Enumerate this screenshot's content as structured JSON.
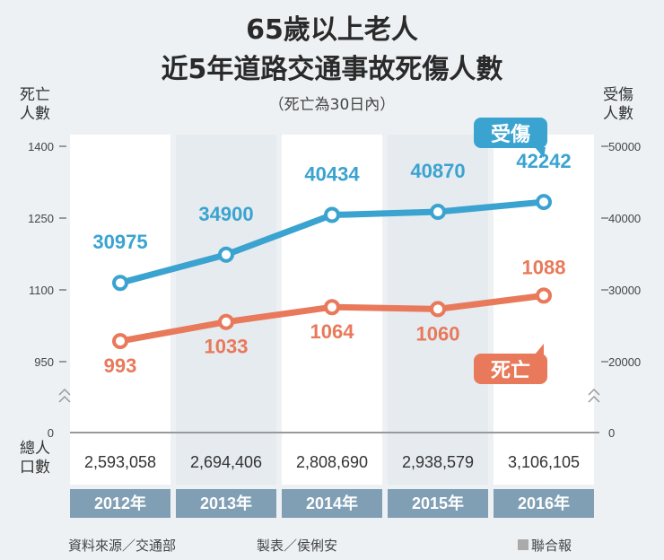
{
  "chart_data": {
    "type": "line",
    "title": "65歲以上老人",
    "subtitle": "近5年道路交通事故死傷人數",
    "note": "（死亡為30日內）",
    "left_axis_label": "死亡人數",
    "right_axis_label": "受傷人數",
    "left_ticks": [
      "1400",
      "1250",
      "1100",
      "950",
      "0"
    ],
    "right_ticks": [
      "50000",
      "40000",
      "30000",
      "20000",
      "0"
    ],
    "left_range": [
      950,
      1400
    ],
    "right_range": [
      20000,
      50000
    ],
    "axis_break": true,
    "categories": [
      "2012年",
      "2013年",
      "2014年",
      "2015年",
      "2016年"
    ],
    "series": [
      {
        "name": "受傷",
        "axis": "right",
        "color": "#3aa3d0",
        "values": [
          30975,
          34900,
          40434,
          40870,
          42242
        ]
      },
      {
        "name": "死亡",
        "axis": "left",
        "color": "#e8795a",
        "values": [
          993,
          1033,
          1064,
          1060,
          1088
        ]
      }
    ],
    "population_label": "總人口數",
    "population": [
      "2,593,058",
      "2,694,406",
      "2,808,690",
      "2,938,579",
      "3,106,105"
    ]
  },
  "footer": {
    "source": "資料來源／交通部",
    "maker": "製表／侯俐安",
    "brand": "聯合報"
  }
}
